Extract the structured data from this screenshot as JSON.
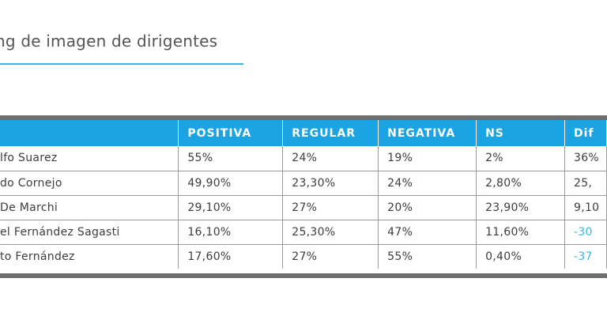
{
  "title": "ng de imagen de dirigentes",
  "table": {
    "headers": [
      "",
      "POSITIVA",
      "REGULAR",
      "NEGATIVA",
      "NS",
      "Dif"
    ],
    "rows": [
      {
        "name": "lfo Suarez",
        "positiva": "55%",
        "regular": "24%",
        "negativa": "19%",
        "ns": "2%",
        "dif": "36%"
      },
      {
        "name": "do Cornejo",
        "positiva": "49,90%",
        "regular": "23,30%",
        "negativa": "24%",
        "ns": "2,80%",
        "dif": "25,"
      },
      {
        "name": " De Marchi",
        "positiva": "29,10%",
        "regular": "27%",
        "negativa": "20%",
        "ns": "23,90%",
        "dif": "9,10"
      },
      {
        "name": "el Fernández Sagasti",
        "positiva": "16,10%",
        "regular": "25,30%",
        "negativa": "47%",
        "ns": "11,60%",
        "dif": "-30"
      },
      {
        "name": "to Fernández",
        "positiva": "17,60%",
        "regular": "27%",
        "negativa": "55%",
        "ns": "0,40%",
        "dif": "-37"
      }
    ]
  },
  "colors": {
    "header_bg": "#1aa4e4",
    "accent": "#39b6e0",
    "frame": "#6f6f6f",
    "text": "#3d3d3d"
  }
}
